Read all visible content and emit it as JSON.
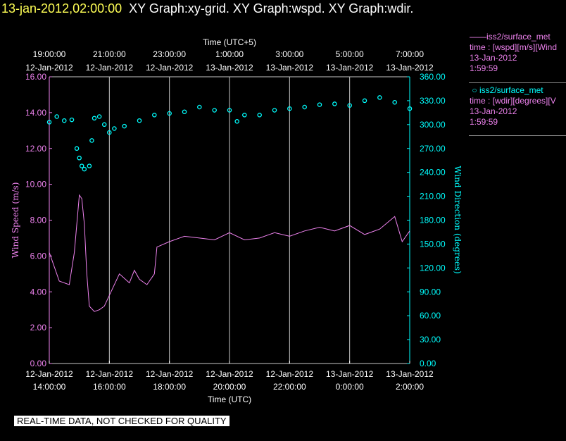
{
  "title": {
    "timestamp": "13-jan-2012,02:00:00",
    "graphs": "XY Graph:xy-grid.  XY Graph:wspd.  XY Graph:wdir."
  },
  "legend": [
    {
      "marker": "——",
      "series": "iss2/surface_met",
      "field": "time : [wspd][m/s][Wind",
      "date": "13-Jan-2012",
      "time": "1:59:59",
      "color": "#ee82ee"
    },
    {
      "marker": "○",
      "series": "iss2/surface_met",
      "field": "time : [wdir][degrees][V",
      "date": "13-Jan-2012",
      "time": "1:59:59",
      "color": "#00ffff"
    }
  ],
  "disclaimer": "REAL-TIME DATA, NOT CHECKED FOR QUALITY",
  "chart_data": {
    "type": "line",
    "x_bottom": {
      "label": "Time (UTC)",
      "range": [
        "2012-01-12T14:00",
        "2012-01-13T02:00"
      ],
      "ticks": [
        {
          "date": "12-Jan-2012",
          "time": "14:00:00"
        },
        {
          "date": "12-Jan-2012",
          "time": "16:00:00"
        },
        {
          "date": "12-Jan-2012",
          "time": "18:00:00"
        },
        {
          "date": "12-Jan-2012",
          "time": "20:00:00"
        },
        {
          "date": "12-Jan-2012",
          "time": "22:00:00"
        },
        {
          "date": "13-Jan-2012",
          "time": "0:00:00"
        },
        {
          "date": "13-Jan-2012",
          "time": "2:00:00"
        }
      ]
    },
    "x_top": {
      "label": "Time (UTC+5)",
      "ticks": [
        {
          "date": "12-Jan-2012",
          "time": "19:00:00"
        },
        {
          "date": "12-Jan-2012",
          "time": "21:00:00"
        },
        {
          "date": "12-Jan-2012",
          "time": "23:00:00"
        },
        {
          "date": "13-Jan-2012",
          "time": "1:00:00"
        },
        {
          "date": "13-Jan-2012",
          "time": "3:00:00"
        },
        {
          "date": "13-Jan-2012",
          "time": "5:00:00"
        },
        {
          "date": "13-Jan-2012",
          "time": "7:00:00"
        }
      ]
    },
    "y_left": {
      "label": "Wind Speed (m/s)",
      "range": [
        0,
        16
      ],
      "ticks": [
        "0.00",
        "2.00",
        "4.00",
        "6.00",
        "8.00",
        "10.00",
        "12.00",
        "14.00",
        "16.00"
      ],
      "color": "#ee82ee"
    },
    "y_right": {
      "label": "Wind Direction (degrees)",
      "range": [
        0,
        360
      ],
      "ticks": [
        "0.00",
        "30.00",
        "60.00",
        "90.00",
        "120.00",
        "150.00",
        "180.00",
        "210.00",
        "240.00",
        "270.00",
        "300.00",
        "330.00",
        "360.00"
      ],
      "color": "#00ffff"
    },
    "grid": "vertical",
    "series": [
      {
        "name": "iss2/surface_met wspd",
        "axis": "left",
        "style": "line",
        "color": "#ee82ee",
        "x": [
          "2012-01-12T14:00",
          "2012-01-12T14:20",
          "2012-01-12T14:40",
          "2012-01-12T14:50",
          "2012-01-12T15:00",
          "2012-01-12T15:05",
          "2012-01-12T15:10",
          "2012-01-12T15:15",
          "2012-01-12T15:20",
          "2012-01-12T15:30",
          "2012-01-12T15:40",
          "2012-01-12T15:50",
          "2012-01-12T16:00",
          "2012-01-12T16:20",
          "2012-01-12T16:40",
          "2012-01-12T16:50",
          "2012-01-12T17:00",
          "2012-01-12T17:15",
          "2012-01-12T17:30",
          "2012-01-12T17:35",
          "2012-01-12T18:00",
          "2012-01-12T18:30",
          "2012-01-12T19:00",
          "2012-01-12T19:30",
          "2012-01-12T20:00",
          "2012-01-12T20:30",
          "2012-01-12T21:00",
          "2012-01-12T21:30",
          "2012-01-12T22:00",
          "2012-01-12T22:30",
          "2012-01-12T23:00",
          "2012-01-12T23:30",
          "2012-01-13T00:00",
          "2012-01-13T00:30",
          "2012-01-13T01:00",
          "2012-01-13T01:30",
          "2012-01-13T01:45",
          "2012-01-13T02:00"
        ],
        "y": [
          6.2,
          4.6,
          4.4,
          6.2,
          9.4,
          9.2,
          7.8,
          5.0,
          3.2,
          2.9,
          3.0,
          3.2,
          3.8,
          5.0,
          4.5,
          5.2,
          4.7,
          4.4,
          5.0,
          6.5,
          6.8,
          7.1,
          7.0,
          6.9,
          7.3,
          6.9,
          7.0,
          7.3,
          7.1,
          7.4,
          7.6,
          7.4,
          7.7,
          7.2,
          7.5,
          8.2,
          6.8,
          7.4
        ]
      },
      {
        "name": "iss2/surface_met wdir",
        "axis": "right",
        "style": "markers",
        "color": "#00ffff",
        "x": [
          "2012-01-12T14:00",
          "2012-01-12T14:15",
          "2012-01-12T14:30",
          "2012-01-12T14:45",
          "2012-01-12T14:55",
          "2012-01-12T15:00",
          "2012-01-12T15:05",
          "2012-01-12T15:10",
          "2012-01-12T15:20",
          "2012-01-12T15:25",
          "2012-01-12T15:30",
          "2012-01-12T15:40",
          "2012-01-12T15:50",
          "2012-01-12T16:00",
          "2012-01-12T16:10",
          "2012-01-12T16:30",
          "2012-01-12T17:00",
          "2012-01-12T17:30",
          "2012-01-12T18:00",
          "2012-01-12T18:30",
          "2012-01-12T19:00",
          "2012-01-12T19:30",
          "2012-01-12T20:00",
          "2012-01-12T20:15",
          "2012-01-12T20:30",
          "2012-01-12T21:00",
          "2012-01-12T21:30",
          "2012-01-12T22:00",
          "2012-01-12T22:30",
          "2012-01-12T23:00",
          "2012-01-12T23:30",
          "2012-01-13T00:00",
          "2012-01-13T00:30",
          "2012-01-13T01:00",
          "2012-01-13T01:30",
          "2012-01-13T02:00"
        ],
        "y": [
          303,
          310,
          305,
          306,
          270,
          258,
          248,
          244,
          248,
          280,
          308,
          310,
          300,
          290,
          295,
          298,
          305,
          312,
          314,
          316,
          322,
          318,
          318,
          304,
          312,
          312,
          318,
          320,
          322,
          325,
          326,
          324,
          330,
          334,
          328,
          320
        ]
      }
    ]
  }
}
